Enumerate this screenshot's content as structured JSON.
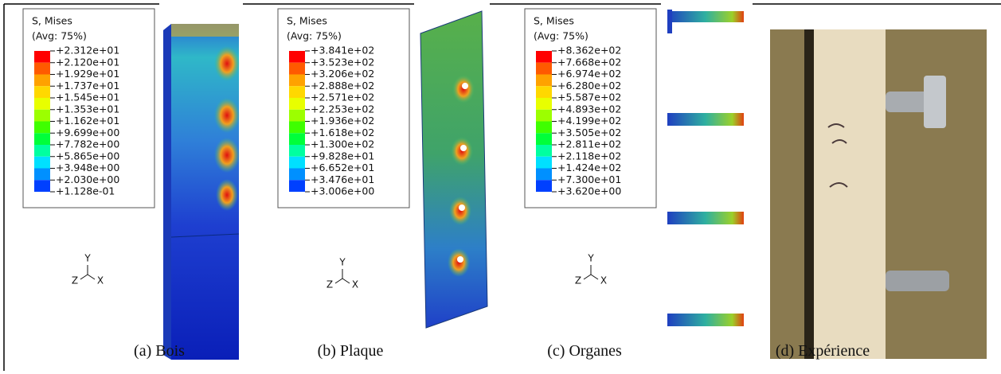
{
  "legend_colors": [
    "#ff0000",
    "#ff5a00",
    "#ffa200",
    "#ffd800",
    "#e8ff00",
    "#9cff00",
    "#3fff00",
    "#00ff3a",
    "#00ffa0",
    "#00e0ff",
    "#0090ff",
    "#0040ff"
  ],
  "panels": [
    {
      "legend": {
        "title": "S, Mises",
        "subtitle": "(Avg: 75%)",
        "values": [
          "+2.312e+01",
          "+2.120e+01",
          "+1.929e+01",
          "+1.737e+01",
          "+1.545e+01",
          "+1.353e+01",
          "+1.162e+01",
          "+9.699e+00",
          "+7.782e+00",
          "+5.865e+00",
          "+3.948e+00",
          "+2.030e+00",
          "+1.128e-01"
        ]
      },
      "triad": {
        "y": "Y",
        "z": "Z",
        "x": "X"
      },
      "caption": "(a) Bois"
    },
    {
      "legend": {
        "title": "S, Mises",
        "subtitle": "(Avg: 75%)",
        "values": [
          "+3.841e+02",
          "+3.523e+02",
          "+3.206e+02",
          "+2.888e+02",
          "+2.571e+02",
          "+2.253e+02",
          "+1.936e+02",
          "+1.618e+02",
          "+1.300e+02",
          "+9.828e+01",
          "+6.652e+01",
          "+3.476e+01",
          "+3.006e+00"
        ]
      },
      "triad": {
        "y": "Y",
        "z": "Z",
        "x": "X"
      },
      "caption": "(b) Plaque"
    },
    {
      "legend": {
        "title": "S, Mises",
        "subtitle": "(Avg: 75%)",
        "values": [
          "+8.362e+02",
          "+7.668e+02",
          "+6.974e+02",
          "+6.280e+02",
          "+5.587e+02",
          "+4.893e+02",
          "+4.199e+02",
          "+3.505e+02",
          "+2.811e+02",
          "+2.118e+02",
          "+1.424e+02",
          "+7.300e+01",
          "+3.620e+00"
        ]
      },
      "triad": {
        "y": "Y",
        "z": "Z",
        "x": "X"
      },
      "caption": "(c) Organes"
    },
    {
      "caption": "(d) Expérience"
    }
  ]
}
